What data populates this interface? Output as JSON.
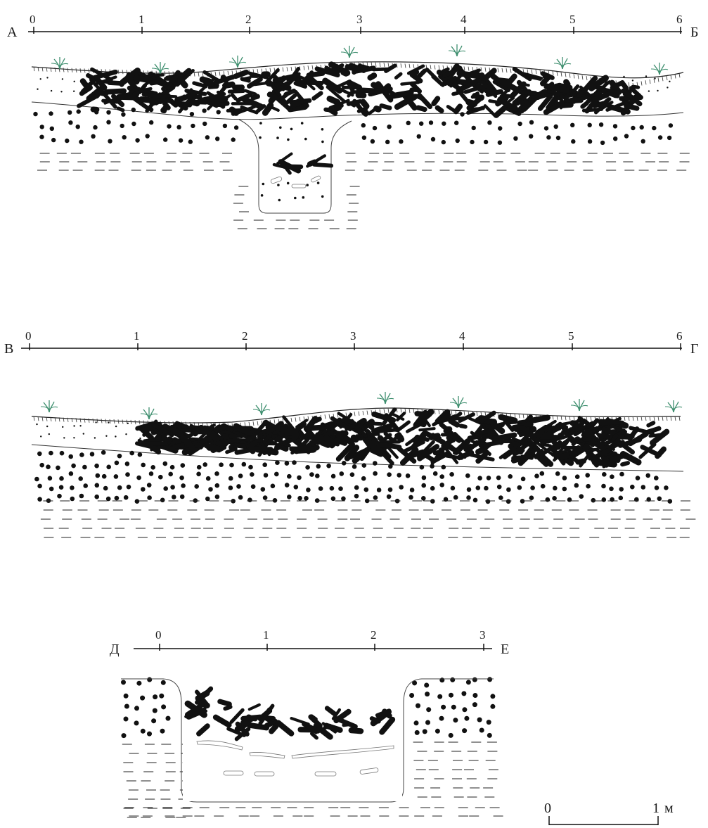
{
  "sections": [
    {
      "id": "ab",
      "start_label": "А",
      "end_label": "Б",
      "ticks": [
        "0",
        "1",
        "2",
        "3",
        "4",
        "5",
        "6"
      ]
    },
    {
      "id": "vg",
      "start_label": "В",
      "end_label": "Г",
      "ticks": [
        "0",
        "1",
        "2",
        "3",
        "4",
        "5",
        "6"
      ]
    },
    {
      "id": "de",
      "start_label": "Д",
      "end_label": "Е",
      "ticks": [
        "0",
        "1",
        "2",
        "3"
      ]
    }
  ],
  "scale_bar": {
    "start": "0",
    "end": "1",
    "unit": "м"
  },
  "colors": {
    "ink": "#111111",
    "plant": "#3f8f6f",
    "outline": "#444444"
  }
}
